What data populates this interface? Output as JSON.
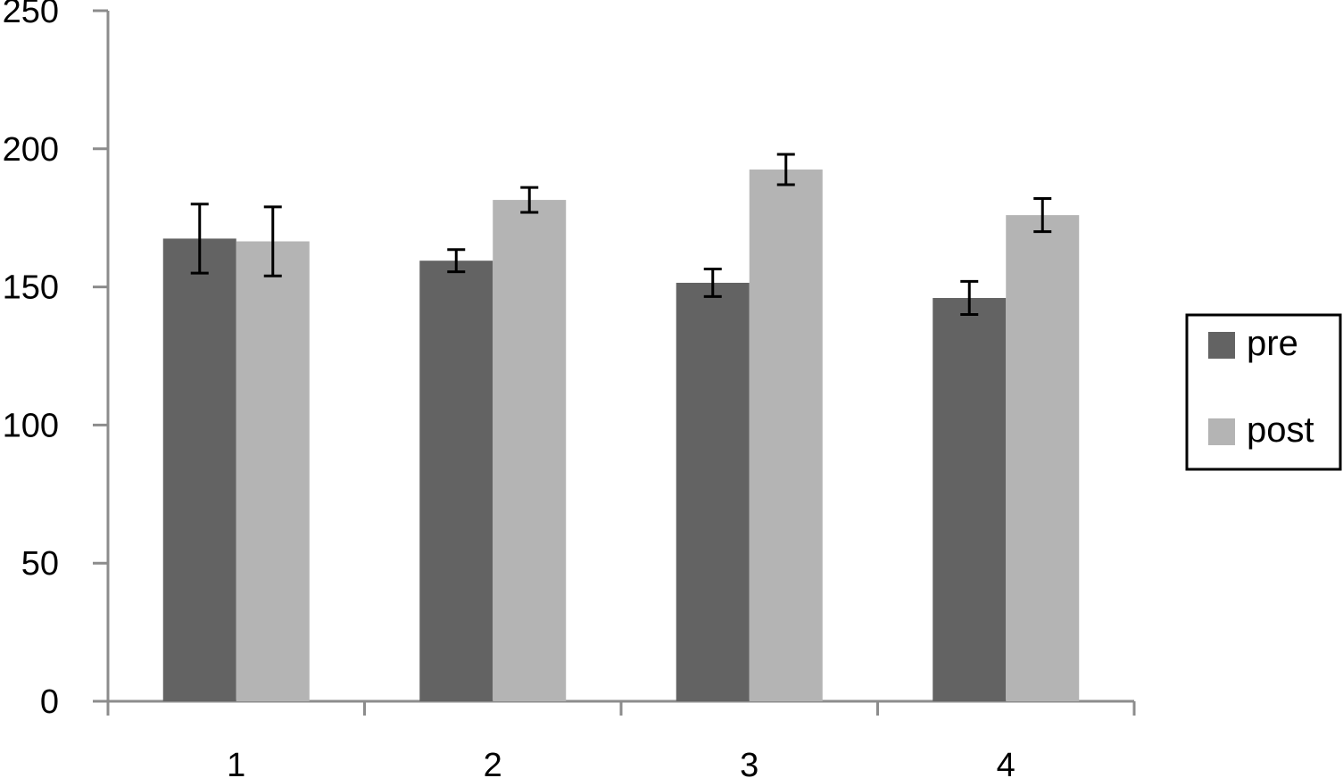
{
  "chart_data": {
    "type": "bar",
    "title": "",
    "xlabel": "",
    "ylabel": "",
    "categories": [
      "1",
      "2",
      "3",
      "4"
    ],
    "ylim": [
      0,
      250
    ],
    "yticks": [
      0,
      50,
      100,
      150,
      200,
      250
    ],
    "grid": false,
    "legend_position": "right",
    "series": [
      {
        "name": "pre",
        "color": "#636363",
        "values": [
          167.5,
          159.5,
          151.5,
          146
        ],
        "error": [
          12.5,
          4,
          5,
          6
        ]
      },
      {
        "name": "post",
        "color": "#b4b4b4",
        "values": [
          166.5,
          181.5,
          192.5,
          176
        ],
        "error": [
          12.5,
          4.5,
          5.5,
          6
        ]
      }
    ]
  }
}
